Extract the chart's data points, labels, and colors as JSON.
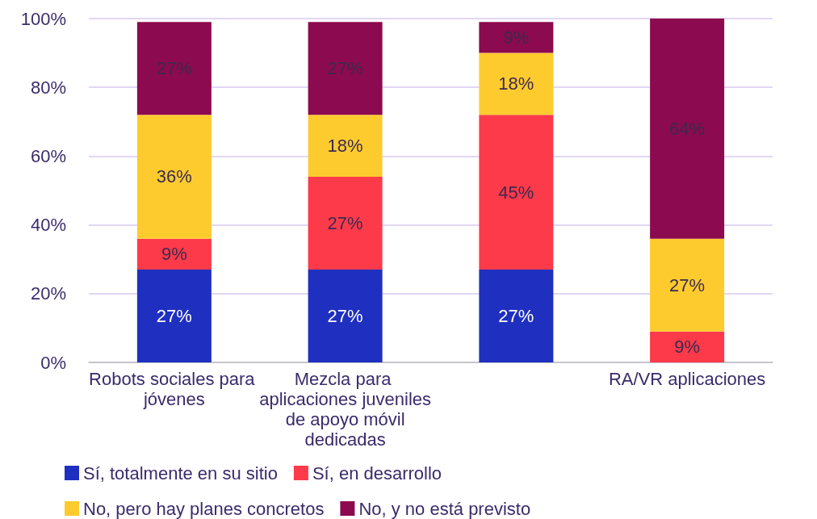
{
  "chart_data": {
    "type": "bar",
    "stacked": true,
    "categories": [
      "Robots sociales para jóvenes",
      "Mezcla para aplicaciones juveniles de apoyo móvil dedicadas",
      null,
      "RA/VR aplicaciones"
    ],
    "series": [
      {
        "name": "Sí, totalmente en su sitio",
        "color": "#1f2fbf",
        "values": [
          27,
          27,
          27,
          null
        ],
        "value_labels": [
          "27%",
          "27%",
          "27%",
          null
        ]
      },
      {
        "name": "Sí, en desarrollo",
        "color": "#fd3a4a",
        "values": [
          9,
          27,
          45,
          9
        ],
        "value_labels": [
          "9%",
          "27%",
          "45%",
          "9%"
        ]
      },
      {
        "name": "No, pero hay planes concretos",
        "color": "#fecb2f",
        "values": [
          36,
          18,
          18,
          27
        ],
        "value_labels": [
          "36%",
          "18%",
          "18%",
          "27%"
        ]
      },
      {
        "name": "No, y no está previsto",
        "color": "#8c0a4f",
        "values": [
          27,
          27,
          9,
          64
        ],
        "value_labels": [
          "27%",
          "27%",
          "9%",
          "64%"
        ]
      }
    ],
    "ylim": [
      0,
      100
    ],
    "yticks": [
      {
        "value": 0,
        "label": "0%"
      },
      {
        "value": 20,
        "label": "20%"
      },
      {
        "value": 40,
        "label": "40%"
      },
      {
        "value": 60,
        "label": "60%"
      },
      {
        "value": 80,
        "label": "80%"
      },
      {
        "value": 100,
        "label": "100%"
      }
    ],
    "grid": "y",
    "legend": "bottom"
  }
}
